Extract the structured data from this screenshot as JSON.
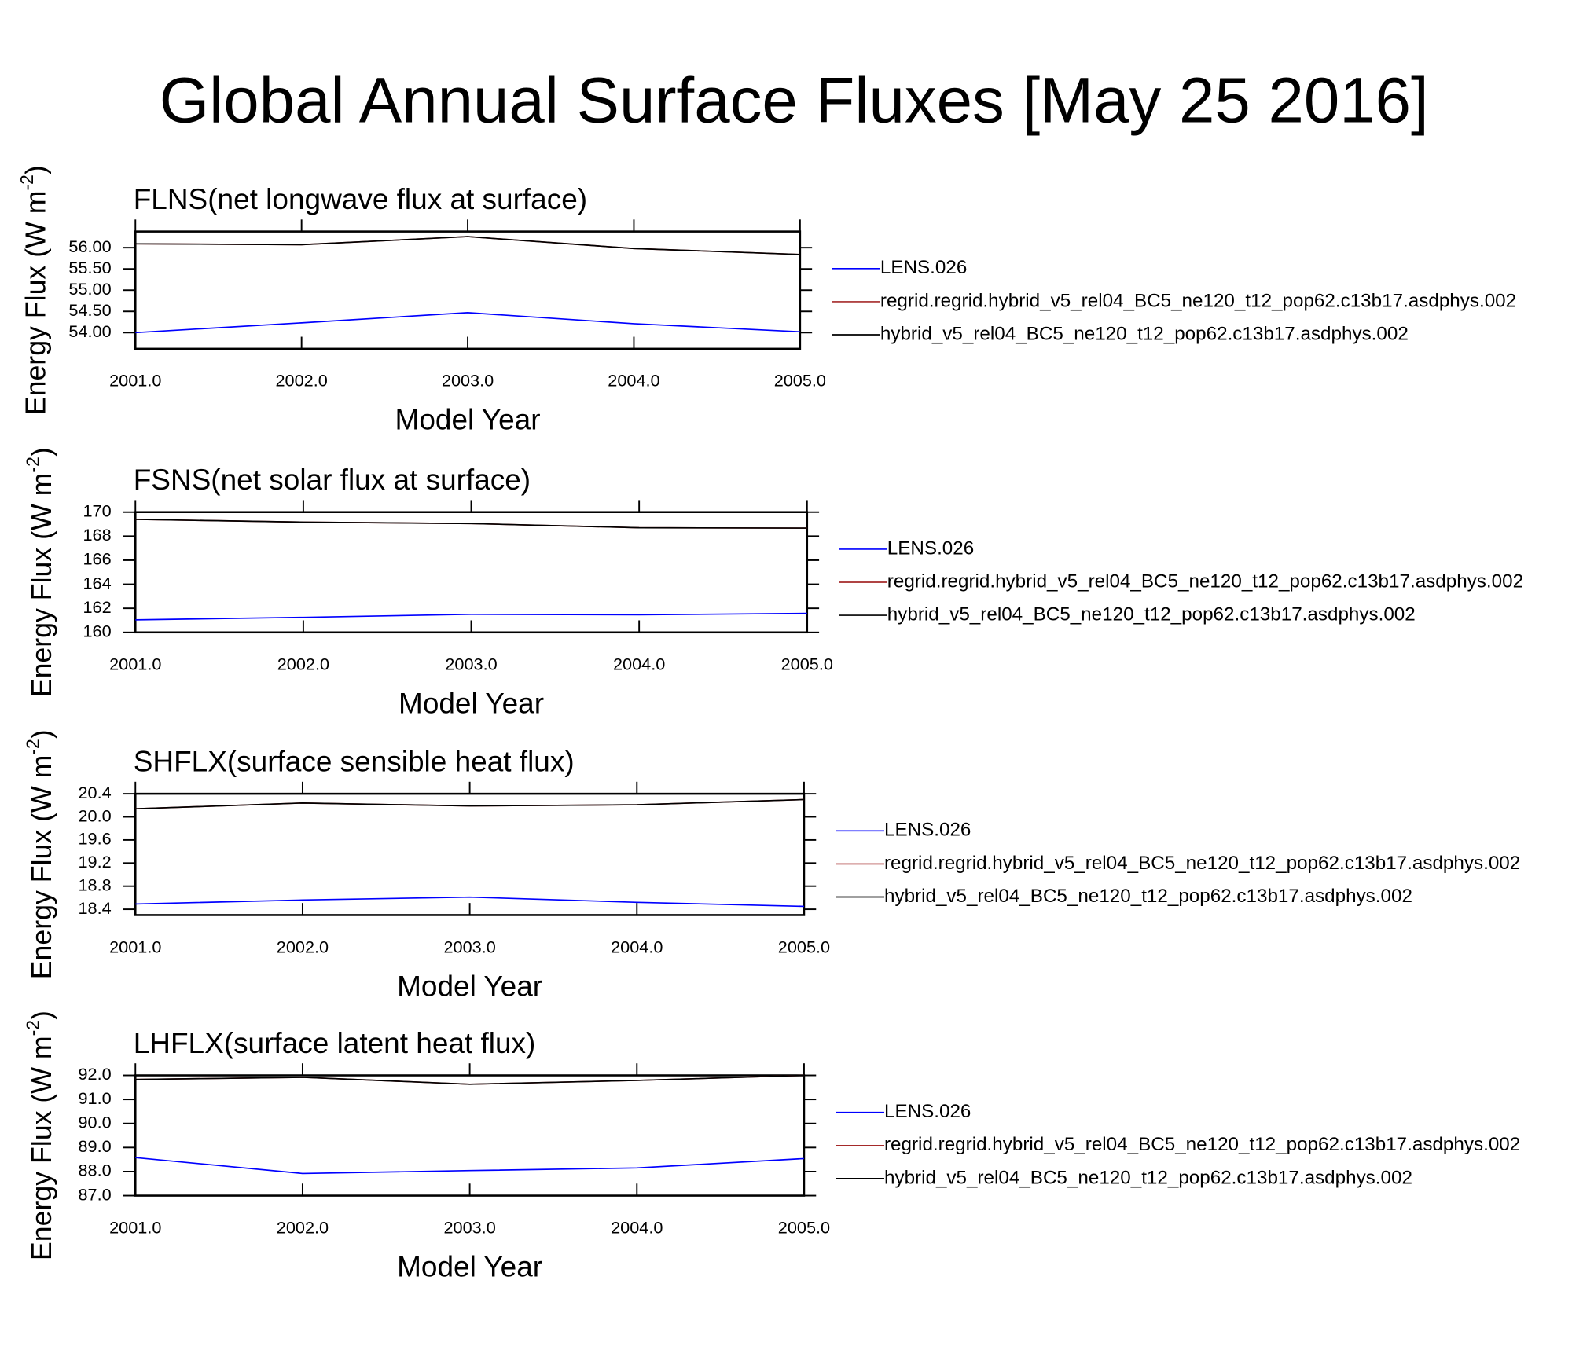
{
  "title": "Global Annual Surface Fluxes [May 25 2016]",
  "chart_data": [
    {
      "type": "line",
      "title": "FLNS(net longwave flux at surface)",
      "xlabel": "Model Year",
      "ylabel": [
        "Energy Flux (W m",
        "-2",
        ")"
      ],
      "x": [
        2001,
        2002,
        2003,
        2004,
        2005
      ],
      "xlim": [
        2001,
        2005
      ],
      "xticks": [
        {
          "value": 2001,
          "label": "2001.0"
        },
        {
          "value": 2002,
          "label": "2002.0"
        },
        {
          "value": 2003,
          "label": "2003.0"
        },
        {
          "value": 2004,
          "label": "2004.0"
        },
        {
          "value": 2005,
          "label": "2005.0"
        }
      ],
      "ylim": [
        53.62,
        56.38
      ],
      "yticks": [
        {
          "value": 54,
          "label": "54.00"
        },
        {
          "value": 54.5,
          "label": "54.50"
        },
        {
          "value": 55,
          "label": "55.00"
        },
        {
          "value": 55.5,
          "label": "55.50"
        },
        {
          "value": 56,
          "label": "56.00"
        }
      ],
      "series": [
        {
          "name": "LENS.026",
          "color": "#0000ff",
          "values": [
            54.0,
            54.23,
            54.47,
            54.21,
            54.02
          ]
        },
        {
          "name": "regrid.regrid.hybrid_v5_rel04_BC5_ne120_t12_pop62.c13b17.asdphys.002",
          "color": "#a52a2a",
          "values": [
            56.09,
            56.07,
            56.26,
            55.98,
            55.84
          ]
        },
        {
          "name": "hybrid_v5_rel04_BC5_ne120_t12_pop62.c13b17.asdphys.002",
          "color": "#000000",
          "values": [
            56.09,
            56.07,
            56.26,
            55.98,
            55.84
          ]
        }
      ]
    },
    {
      "type": "line",
      "title": "FSNS(net solar flux at surface)",
      "xlabel": "Model Year",
      "ylabel": [
        "Energy Flux (W m",
        "-2",
        ")"
      ],
      "x": [
        2001,
        2002,
        2003,
        2004,
        2005
      ],
      "xlim": [
        2001,
        2005
      ],
      "xticks": [
        {
          "value": 2001,
          "label": "2001.0"
        },
        {
          "value": 2002,
          "label": "2002.0"
        },
        {
          "value": 2003,
          "label": "2003.0"
        },
        {
          "value": 2004,
          "label": "2004.0"
        },
        {
          "value": 2005,
          "label": "2005.0"
        }
      ],
      "ylim": [
        160,
        170
      ],
      "yticks": [
        160,
        162,
        164,
        166,
        168,
        170
      ],
      "series": [
        {
          "name": "LENS.026",
          "color": "#0000ff",
          "values": [
            161.04,
            161.25,
            161.5,
            161.46,
            161.58
          ]
        },
        {
          "name": "regrid.regrid.hybrid_v5_rel04_BC5_ne120_t12_pop62.c13b17.asdphys.002",
          "color": "#a52a2a",
          "values": [
            169.4,
            169.17,
            169.05,
            168.7,
            168.67
          ]
        },
        {
          "name": "hybrid_v5_rel04_BC5_ne120_t12_pop62.c13b17.asdphys.002",
          "color": "#000000",
          "values": [
            169.4,
            169.17,
            169.05,
            168.7,
            168.67
          ]
        }
      ]
    },
    {
      "type": "line",
      "title": "SHFLX(surface sensible heat flux)",
      "xlabel": "Model Year",
      "ylabel": [
        "Energy Flux (W m",
        "-2",
        ")"
      ],
      "x": [
        2001,
        2002,
        2003,
        2004,
        2005
      ],
      "xlim": [
        2001,
        2005
      ],
      "xticks": [
        {
          "value": 2001,
          "label": "2001.0"
        },
        {
          "value": 2002,
          "label": "2002.0"
        },
        {
          "value": 2003,
          "label": "2003.0"
        },
        {
          "value": 2004,
          "label": "2004.0"
        },
        {
          "value": 2005,
          "label": "2005.0"
        }
      ],
      "ylim": [
        18.3,
        20.4
      ],
      "yticks": [
        18.4,
        18.8,
        19.2,
        19.6,
        {
          "value": 20,
          "label": "20.0"
        },
        20.4
      ],
      "series": [
        {
          "name": "LENS.026",
          "color": "#0000ff",
          "values": [
            18.49,
            18.56,
            18.61,
            18.52,
            18.45
          ]
        },
        {
          "name": "regrid.regrid.hybrid_v5_rel04_BC5_ne120_t12_pop62.c13b17.asdphys.002",
          "color": "#a52a2a",
          "values": [
            20.14,
            20.24,
            20.19,
            20.21,
            20.3
          ]
        },
        {
          "name": "hybrid_v5_rel04_BC5_ne120_t12_pop62.c13b17.asdphys.002",
          "color": "#000000",
          "values": [
            20.14,
            20.24,
            20.19,
            20.21,
            20.3
          ]
        }
      ]
    },
    {
      "type": "line",
      "title": "LHFLX(surface latent heat flux)",
      "xlabel": "Model Year",
      "ylabel": [
        "Energy Flux (W m",
        "-2",
        ")"
      ],
      "x": [
        2001,
        2002,
        2003,
        2004,
        2005
      ],
      "xlim": [
        2001,
        2005
      ],
      "xticks": [
        {
          "value": 2001,
          "label": "2001.0"
        },
        {
          "value": 2002,
          "label": "2002.0"
        },
        {
          "value": 2003,
          "label": "2003.0"
        },
        {
          "value": 2004,
          "label": "2004.0"
        },
        {
          "value": 2005,
          "label": "2005.0"
        }
      ],
      "ylim": [
        87,
        92
      ],
      "yticks": [
        {
          "value": 87,
          "label": "87.0"
        },
        {
          "value": 88,
          "label": "88.0"
        },
        {
          "value": 89,
          "label": "89.0"
        },
        {
          "value": 90,
          "label": "90.0"
        },
        {
          "value": 91,
          "label": "91.0"
        },
        {
          "value": 92,
          "label": "92.0"
        }
      ],
      "series": [
        {
          "name": "LENS.026",
          "color": "#0000ff",
          "values": [
            88.58,
            87.92,
            88.04,
            88.15,
            88.54
          ]
        },
        {
          "name": "regrid.regrid.hybrid_v5_rel04_BC5_ne120_t12_pop62.c13b17.asdphys.002",
          "color": "#a52a2a",
          "values": [
            91.83,
            91.92,
            91.63,
            91.79,
            92.0
          ]
        },
        {
          "name": "hybrid_v5_rel04_BC5_ne120_t12_pop62.c13b17.asdphys.002",
          "color": "#000000",
          "values": [
            91.83,
            91.92,
            91.63,
            91.79,
            92.0
          ]
        }
      ]
    }
  ]
}
